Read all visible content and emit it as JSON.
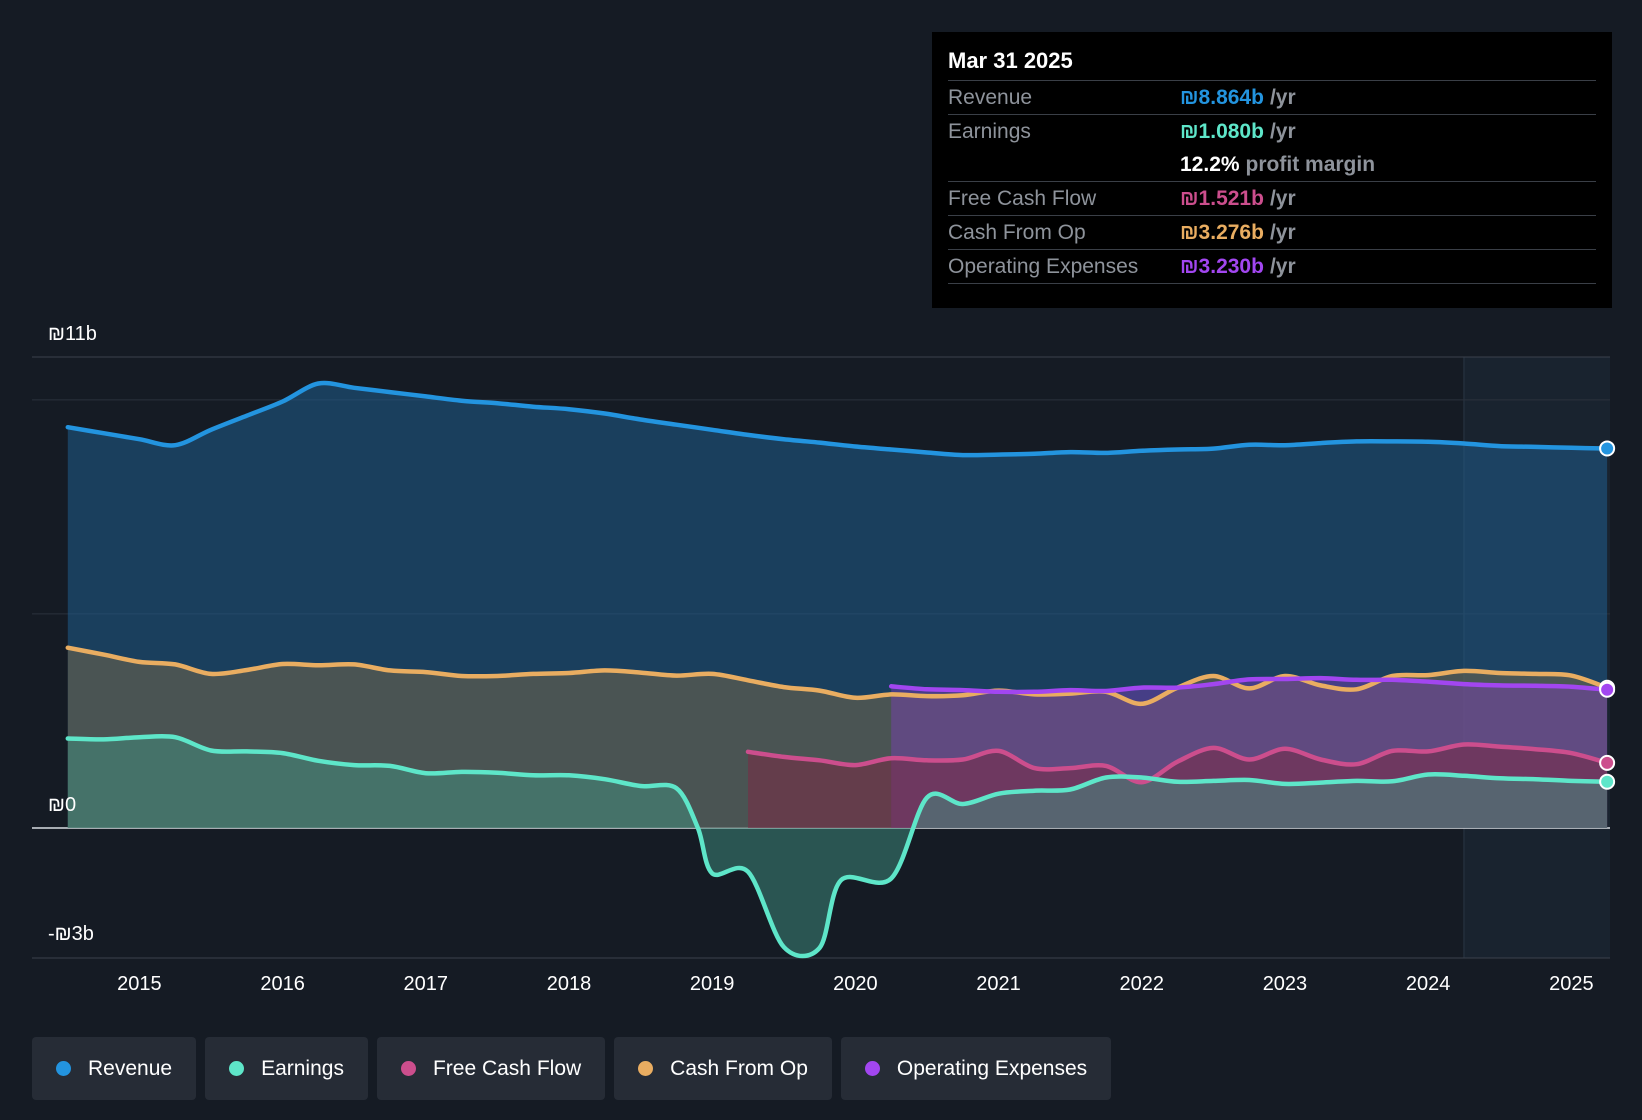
{
  "colors": {
    "revenue": "#2394df",
    "earnings": "#5ee6c9",
    "fcf": "#cc4e8d",
    "cfo": "#e9ad61",
    "opex": "#a246f0",
    "background": "#151b24"
  },
  "tooltip": {
    "date": "Mar 31 2025",
    "rows": [
      {
        "label": "Revenue",
        "value": "₪8.864b",
        "unit": "/yr",
        "color": "#2394df"
      },
      {
        "label": "Earnings",
        "value": "₪1.080b",
        "unit": "/yr",
        "color": "#5ee6c9"
      },
      {
        "label": "",
        "value": "12.2%",
        "unit": "profit margin",
        "color": "#ffffff"
      },
      {
        "label": "Free Cash Flow",
        "value": "₪1.521b",
        "unit": "/yr",
        "color": "#cc4e8d"
      },
      {
        "label": "Cash From Op",
        "value": "₪3.276b",
        "unit": "/yr",
        "color": "#e9ad61"
      },
      {
        "label": "Operating Expenses",
        "value": "₪3.230b",
        "unit": "/yr",
        "color": "#a246f0"
      }
    ]
  },
  "legend": [
    {
      "label": "Revenue",
      "color": "#2394df"
    },
    {
      "label": "Earnings",
      "color": "#5ee6c9"
    },
    {
      "label": "Free Cash Flow",
      "color": "#cc4e8d"
    },
    {
      "label": "Cash From Op",
      "color": "#e9ad61"
    },
    {
      "label": "Operating Expenses",
      "color": "#a246f0"
    }
  ],
  "chart_data": {
    "type": "area",
    "title": "",
    "xlabel": "",
    "ylabel": "",
    "y_tick_labels": {
      "top": "₪11b",
      "zero": "₪0",
      "bottom": "-₪3b"
    },
    "ylim": [
      -3,
      11
    ],
    "xlim": [
      2014.25,
      2025.27
    ],
    "x_ticks": [
      2015,
      2016,
      2017,
      2018,
      2019,
      2020,
      2021,
      2022,
      2023,
      2024,
      2025
    ],
    "x_tick_labels": [
      "2015",
      "2016",
      "2017",
      "2018",
      "2019",
      "2020",
      "2021",
      "2022",
      "2023",
      "2024",
      "2025"
    ],
    "forecast_shade_start": 2024.25,
    "series": [
      {
        "name": "Revenue",
        "key": "revenue",
        "x": [
          2014.5,
          2014.75,
          2015.0,
          2015.25,
          2015.5,
          2015.75,
          2016.0,
          2016.25,
          2016.5,
          2016.75,
          2017.0,
          2017.25,
          2017.5,
          2017.75,
          2018.0,
          2018.25,
          2018.5,
          2018.75,
          2019.0,
          2019.25,
          2019.5,
          2019.75,
          2020.0,
          2020.25,
          2020.5,
          2020.75,
          2021.0,
          2021.25,
          2021.5,
          2021.75,
          2022.0,
          2022.25,
          2022.5,
          2022.75,
          2023.0,
          2023.25,
          2023.5,
          2023.75,
          2024.0,
          2024.25,
          2024.5,
          2024.75,
          2025.0,
          2025.25
        ],
        "values": [
          9.36,
          9.22,
          9.08,
          8.94,
          9.3,
          9.63,
          9.96,
          10.38,
          10.28,
          10.18,
          10.08,
          9.98,
          9.92,
          9.84,
          9.78,
          9.68,
          9.54,
          9.42,
          9.3,
          9.18,
          9.08,
          9.0,
          8.91,
          8.84,
          8.77,
          8.71,
          8.72,
          8.74,
          8.78,
          8.76,
          8.81,
          8.84,
          8.86,
          8.95,
          8.94,
          8.99,
          9.03,
          9.03,
          9.02,
          8.98,
          8.92,
          8.9,
          8.88,
          8.864
        ]
      },
      {
        "name": "Cash From Op",
        "key": "cfo",
        "x": [
          2014.5,
          2014.75,
          2015.0,
          2015.25,
          2015.5,
          2015.75,
          2016.0,
          2016.25,
          2016.5,
          2016.75,
          2017.0,
          2017.25,
          2017.5,
          2017.75,
          2018.0,
          2018.25,
          2018.5,
          2018.75,
          2019.0,
          2019.25,
          2019.5,
          2019.75,
          2020.0,
          2020.25,
          2020.5,
          2020.75,
          2021.0,
          2021.25,
          2021.5,
          2021.75,
          2022.0,
          2022.25,
          2022.5,
          2022.75,
          2023.0,
          2023.25,
          2023.5,
          2023.75,
          2024.0,
          2024.25,
          2024.5,
          2024.75,
          2025.0,
          2025.25
        ],
        "values": [
          4.21,
          4.05,
          3.88,
          3.82,
          3.6,
          3.69,
          3.83,
          3.8,
          3.82,
          3.68,
          3.64,
          3.55,
          3.55,
          3.6,
          3.62,
          3.68,
          3.63,
          3.56,
          3.6,
          3.45,
          3.29,
          3.21,
          3.04,
          3.12,
          3.08,
          3.1,
          3.21,
          3.12,
          3.14,
          3.18,
          2.9,
          3.28,
          3.55,
          3.26,
          3.55,
          3.33,
          3.24,
          3.55,
          3.57,
          3.67,
          3.62,
          3.6,
          3.56,
          3.276
        ]
      },
      {
        "name": "Operating Expenses",
        "key": "opex",
        "x": [
          2020.25,
          2020.5,
          2020.75,
          2021.0,
          2021.25,
          2021.5,
          2021.75,
          2022.0,
          2022.25,
          2022.5,
          2022.75,
          2023.0,
          2023.25,
          2023.5,
          2023.75,
          2024.0,
          2024.25,
          2024.5,
          2024.75,
          2025.0,
          2025.25
        ],
        "values": [
          3.31,
          3.24,
          3.22,
          3.18,
          3.18,
          3.22,
          3.2,
          3.28,
          3.28,
          3.36,
          3.47,
          3.48,
          3.5,
          3.46,
          3.46,
          3.42,
          3.36,
          3.33,
          3.32,
          3.3,
          3.23
        ]
      },
      {
        "name": "Free Cash Flow",
        "key": "fcf",
        "x": [
          2019.25,
          2019.5,
          2019.75,
          2020.0,
          2020.25,
          2020.5,
          2020.75,
          2021.0,
          2021.25,
          2021.5,
          2021.75,
          2022.0,
          2022.25,
          2022.5,
          2022.75,
          2023.0,
          2023.25,
          2023.5,
          2023.75,
          2024.0,
          2024.25,
          2024.5,
          2024.75,
          2025.0,
          2025.25
        ],
        "values": [
          1.78,
          1.66,
          1.58,
          1.47,
          1.63,
          1.58,
          1.6,
          1.8,
          1.4,
          1.4,
          1.45,
          1.07,
          1.55,
          1.87,
          1.6,
          1.85,
          1.6,
          1.49,
          1.8,
          1.79,
          1.95,
          1.9,
          1.84,
          1.75,
          1.521
        ]
      },
      {
        "name": "Earnings",
        "key": "earnings",
        "x": [
          2014.5,
          2014.75,
          2015.0,
          2015.25,
          2015.5,
          2015.75,
          2016.0,
          2016.25,
          2016.5,
          2016.75,
          2017.0,
          2017.25,
          2017.5,
          2017.75,
          2018.0,
          2018.25,
          2018.5,
          2018.75,
          2018.9,
          2019.0,
          2019.25,
          2019.5,
          2019.75,
          2019.9,
          2020.25,
          2020.5,
          2020.75,
          2021.0,
          2021.25,
          2021.5,
          2021.75,
          2022.0,
          2022.25,
          2022.5,
          2022.75,
          2023.0,
          2023.25,
          2023.5,
          2023.75,
          2024.0,
          2024.25,
          2024.5,
          2024.75,
          2025.0,
          2025.25
        ],
        "values": [
          2.09,
          2.07,
          2.12,
          2.12,
          1.81,
          1.79,
          1.75,
          1.57,
          1.47,
          1.45,
          1.28,
          1.31,
          1.29,
          1.23,
          1.23,
          1.14,
          0.98,
          0.93,
          0.0,
          -1.06,
          -1.02,
          -2.78,
          -2.8,
          -1.22,
          -1.18,
          0.71,
          0.56,
          0.8,
          0.87,
          0.9,
          1.18,
          1.18,
          1.08,
          1.1,
          1.12,
          1.03,
          1.06,
          1.1,
          1.09,
          1.25,
          1.22,
          1.16,
          1.14,
          1.1,
          1.08
        ]
      }
    ]
  }
}
